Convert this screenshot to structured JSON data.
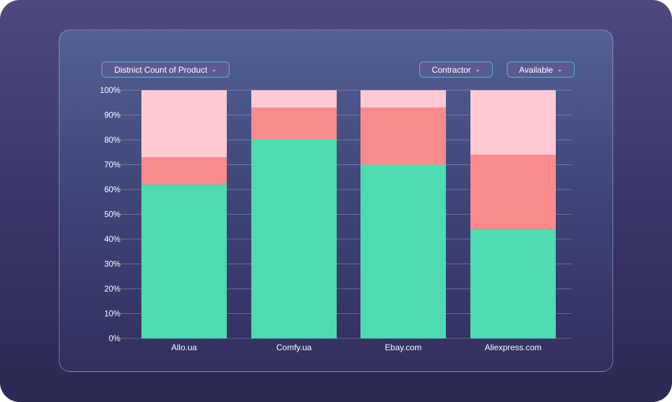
{
  "filters": {
    "measure": "Distnict Count of Product",
    "contractor": "Contractor",
    "availability": "Available"
  },
  "icons": {
    "dropdown": "chevron-down-icon"
  },
  "chart_data": {
    "type": "bar",
    "stacked": true,
    "normalized": true,
    "title": "",
    "xlabel": "",
    "ylabel": "",
    "categories": [
      "Allo.ua",
      "Comfy.ua",
      "Ebay.com",
      "Aliexpress.com"
    ],
    "ylim": [
      0,
      100
    ],
    "yticks": [
      "0%",
      "10%",
      "20%",
      "30%",
      "40%",
      "50%",
      "60%",
      "70%",
      "80%",
      "90%",
      "100%"
    ],
    "series": [
      {
        "name": "green",
        "color": "#4edbb2",
        "values": [
          62,
          80,
          70,
          44
        ]
      },
      {
        "name": "red",
        "color": "#f98b8c",
        "values": [
          11,
          13,
          23,
          30
        ]
      },
      {
        "name": "pink",
        "color": "#ffcad4",
        "values": [
          27,
          7,
          7,
          26
        ]
      }
    ],
    "grid": true,
    "legend": "none"
  }
}
